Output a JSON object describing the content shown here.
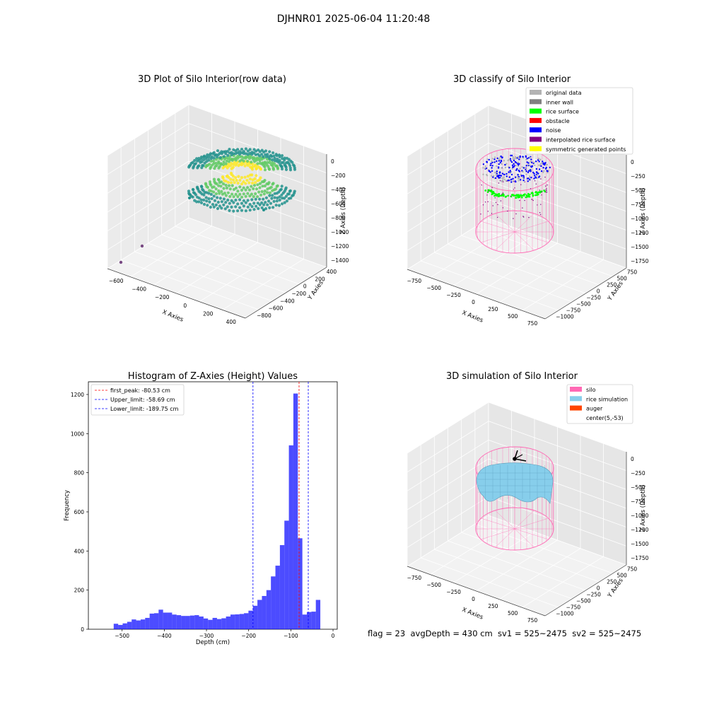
{
  "figure_title": "DJHNR01 2025-06-04 11:20:48",
  "footer": "flag = 23  avgDepth = 430 cm  sv1 = 525~2475  sv2 = 525~2475",
  "chart_data": [
    {
      "type": "scatter",
      "title": "3D Plot of Silo Interior(row data)",
      "xlabel": "X Axies",
      "ylabel": "Y Axies",
      "zlabel": "Z Axies (Depth)",
      "x_ticks": [
        "−600",
        "−400",
        "−200",
        "0",
        "200",
        "400"
      ],
      "y_ticks": [
        "400",
        "200",
        "0",
        "−200",
        "−400",
        "−600",
        "−800"
      ],
      "z_ticks": [
        "0",
        "−200",
        "−400",
        "−600",
        "−800",
        "−1000",
        "−1200",
        "−1400"
      ],
      "colormap": [
        "#440154",
        "#21918c",
        "#5ec962",
        "#fde725"
      ]
    },
    {
      "type": "scatter",
      "title": "3D classify of Silo Interior",
      "xlabel": "X Axies",
      "ylabel": "Y Axies",
      "zlabel": "Z Axies (Depth)",
      "x_ticks": [
        "−750",
        "−500",
        "−250",
        "0",
        "250",
        "500",
        "750"
      ],
      "y_ticks": [
        "750",
        "500",
        "250",
        "0",
        "−250",
        "−500",
        "−750",
        "−1000"
      ],
      "z_ticks": [
        "0",
        "−250",
        "−500",
        "−750",
        "−1000",
        "−1250",
        "−1500",
        "−1750"
      ],
      "legend": [
        {
          "label": "original data",
          "color": "#b3b3b3"
        },
        {
          "label": "inner wall",
          "color": "#808080"
        },
        {
          "label": "rice surface",
          "color": "#00ff00"
        },
        {
          "label": "obstacle",
          "color": "#ff0000"
        },
        {
          "label": "noise",
          "color": "#0000ff"
        },
        {
          "label": "interpolated rice surface",
          "color": "#800080"
        },
        {
          "label": "symmetric generated points",
          "color": "#ffff00"
        }
      ],
      "legend_position": "top-right"
    },
    {
      "type": "bar",
      "title": "Histogram of Z-Axies (Height) Values",
      "xlabel": "Depth (cm)",
      "ylabel": "Frequency",
      "x_ticks": [
        -500,
        -400,
        -300,
        -200,
        -100,
        0
      ],
      "y_ticks": [
        0,
        200,
        400,
        600,
        800,
        1000,
        1200
      ],
      "xlim": [
        -580,
        10
      ],
      "ylim": [
        0,
        1265
      ],
      "bin_width": 10.65,
      "bin_start": -520,
      "values": [
        28,
        22,
        30,
        38,
        50,
        45,
        50,
        58,
        80,
        82,
        100,
        85,
        85,
        75,
        72,
        68,
        68,
        70,
        72,
        65,
        55,
        48,
        58,
        52,
        56,
        65,
        75,
        76,
        78,
        82,
        95,
        120,
        150,
        170,
        200,
        270,
        325,
        430,
        555,
        940,
        1205,
        465,
        75,
        88,
        90,
        150
      ],
      "bar_color": "#0000ff",
      "lines": [
        {
          "label": "first_peak: -80.53 cm",
          "x": -80.53,
          "color": "#ff0000"
        },
        {
          "label": "Upper_limit: -58.69 cm",
          "x": -58.69,
          "color": "#0000ff"
        },
        {
          "label": "Lower_limit: -189.75 cm",
          "x": -189.75,
          "color": "#0000ff"
        }
      ],
      "legend_position": "top-left"
    },
    {
      "type": "surface",
      "title": "3D simulation of Silo Interior",
      "xlabel": "X Axies",
      "ylabel": "Y Axies",
      "zlabel": "Z Axies (Depth)",
      "x_ticks": [
        "−750",
        "−500",
        "−250",
        "0",
        "250",
        "500",
        "750"
      ],
      "y_ticks": [
        "750",
        "500",
        "250",
        "0",
        "−250",
        "−500",
        "−750",
        "−1000"
      ],
      "z_ticks": [
        "0",
        "−250",
        "−500",
        "−750",
        "−1000",
        "−1250",
        "−1500",
        "−1750"
      ],
      "legend": [
        {
          "label": "silo",
          "color": "#ff69b4"
        },
        {
          "label": "rice simulation",
          "color": "#87ceeb"
        },
        {
          "label": "auger",
          "color": "#ff4500"
        },
        {
          "label": "center(5,-53)",
          "color": "#ffffff"
        }
      ],
      "legend_position": "top-right"
    }
  ]
}
